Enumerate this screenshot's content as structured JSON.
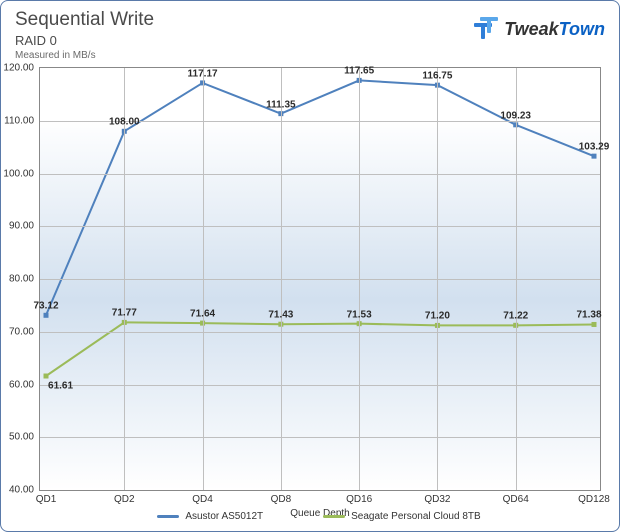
{
  "header": {
    "title": "Sequential Write",
    "subtitle": "RAID 0",
    "unit": "Measured in MB/s"
  },
  "logo": {
    "brand_a": "Tweak",
    "brand_b": "Town",
    "icon_color": "#1e73d4"
  },
  "chart": {
    "type": "line",
    "x_axis_title": "Queue Depth",
    "categories": [
      "QD1",
      "QD2",
      "QD4",
      "QD8",
      "QD16",
      "QD32",
      "QD64",
      "QD128"
    ],
    "ylim": [
      40,
      120
    ],
    "ytick_step": 10,
    "grid_color": "#bfbfbf",
    "background_top": "#ffffff",
    "background_mid": "#d2e0ef",
    "border_color": "#888888",
    "label_fontsize": 10,
    "series": [
      {
        "name": "Asustor AS5012T",
        "color": "#4f81bd",
        "line_width": 2,
        "values": [
          73.12,
          108.0,
          117.17,
          111.35,
          117.65,
          116.75,
          109.23,
          103.29
        ]
      },
      {
        "name": "Seagate Personal Cloud 8TB",
        "color": "#9bbb59",
        "line_width": 2,
        "values": [
          61.61,
          71.77,
          71.64,
          71.43,
          71.53,
          71.2,
          71.22,
          71.38
        ]
      }
    ]
  }
}
